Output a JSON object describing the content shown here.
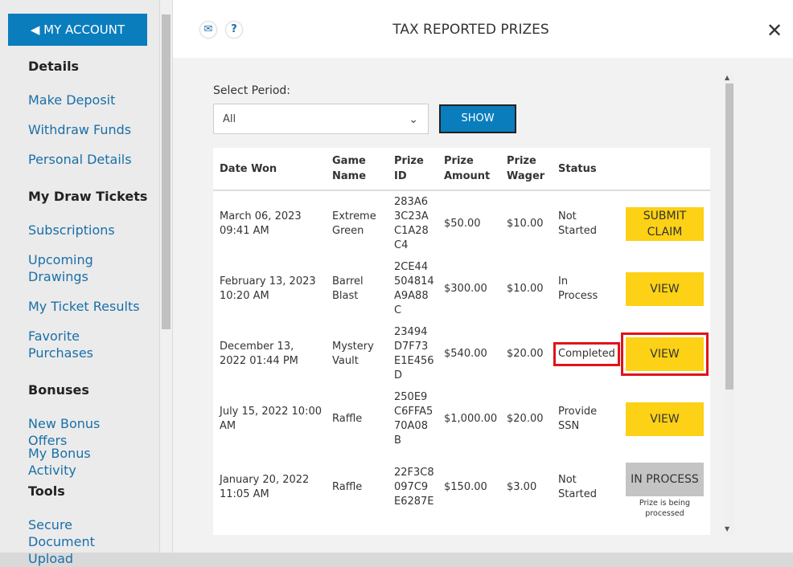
{
  "sidebar": {
    "account_button": "MY ACCOUNT",
    "sections": [
      {
        "heading": "Details",
        "links": [
          "Make Deposit",
          "Withdraw Funds",
          "Personal Details"
        ]
      },
      {
        "heading": "My Draw Tickets",
        "links": [
          "Subscriptions",
          "Upcoming Drawings",
          "My Ticket Results",
          "Favorite Purchases"
        ]
      },
      {
        "heading": "Bonuses",
        "links": [
          "New Bonus Offers",
          "My Bonus Activity"
        ]
      },
      {
        "heading": "Tools",
        "links": [
          "Secure Document Upload"
        ]
      }
    ]
  },
  "modal": {
    "title": "TAX REPORTED PRIZES",
    "period_label": "Select Period:",
    "period_value": "All",
    "show_button": "SHOW",
    "table": {
      "columns": [
        "Date Won",
        "Game Name",
        "Prize ID",
        "Prize Amount",
        "Prize Wager",
        "Status"
      ],
      "rows": [
        {
          "date": "March 06, 2023 09:41 AM",
          "game": "Extreme Green",
          "prize_id": "283A63C23AC1A28C4",
          "amount": "$50.00",
          "wager": "$10.00",
          "status": "Not Started",
          "action": "SUBMIT CLAIM"
        },
        {
          "date": "February 13, 2023 10:20 AM",
          "game": "Barrel Blast",
          "prize_id": "2CE44504814A9A88C",
          "amount": "$300.00",
          "wager": "$10.00",
          "status": "In Process",
          "action": "VIEW"
        },
        {
          "date": "December 13, 2022 01:44 PM",
          "game": "Mystery Vault",
          "prize_id": "23494D7F73E1E456D",
          "amount": "$540.00",
          "wager": "$20.00",
          "status": "Completed",
          "action": "VIEW"
        },
        {
          "date": "July 15, 2022 10:00 AM",
          "game": "Raffle",
          "prize_id": "250E9C6FFA570A08B",
          "amount": "$1,000.00",
          "wager": "$20.00",
          "status": "Provide SSN",
          "action": "VIEW"
        },
        {
          "date": "January 20, 2022 11:05 AM",
          "game": "Raffle",
          "prize_id": "22F3C8097C9E6287E",
          "amount": "$150.00",
          "wager": "$3.00",
          "status": "Not Started",
          "action": "IN PROCESS",
          "note": "Prize is being processed"
        }
      ]
    }
  }
}
